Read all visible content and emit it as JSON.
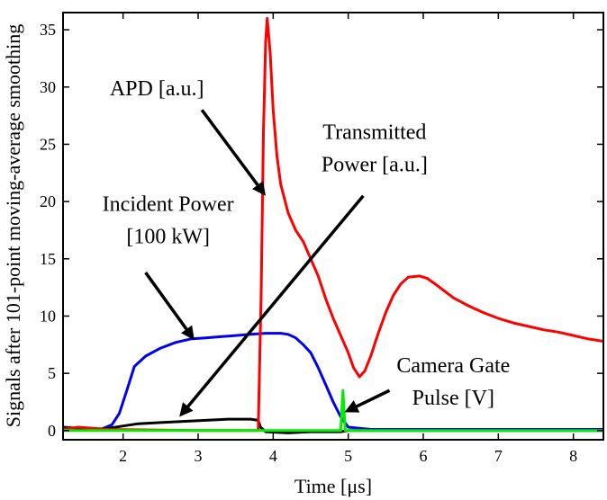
{
  "chart_data": {
    "type": "line",
    "xlabel": "Time [μs]",
    "ylabel": "Signals after 101-point moving-average smoothing",
    "xlim": [
      1.2,
      8.4
    ],
    "ylim": [
      -0.8,
      36.5
    ],
    "x_ticks": [
      "2",
      "3",
      "4",
      "5",
      "6",
      "7",
      "8"
    ],
    "y_ticks": [
      "0",
      "5",
      "10",
      "15",
      "20",
      "25",
      "30",
      "35"
    ],
    "grid": false,
    "series": [
      {
        "name": "APD [a.u.]",
        "color": "#ff0000",
        "points": [
          [
            1.2,
            0.1
          ],
          [
            1.4,
            0.3
          ],
          [
            1.6,
            0.2
          ],
          [
            1.8,
            0.1
          ],
          [
            2.5,
            0.05
          ],
          [
            3.0,
            0.0
          ],
          [
            3.5,
            0.0
          ],
          [
            3.8,
            0.0
          ],
          [
            3.84,
            12.0
          ],
          [
            3.87,
            26.0
          ],
          [
            3.9,
            34.0
          ],
          [
            3.92,
            36.0
          ],
          [
            3.96,
            33.0
          ],
          [
            4.0,
            28.0
          ],
          [
            4.05,
            24.0
          ],
          [
            4.1,
            21.5
          ],
          [
            4.2,
            19.0
          ],
          [
            4.3,
            17.5
          ],
          [
            4.4,
            16.5
          ],
          [
            4.5,
            15.0
          ],
          [
            4.6,
            13.5
          ],
          [
            4.7,
            11.5
          ],
          [
            4.8,
            9.8
          ],
          [
            4.9,
            8.3
          ],
          [
            5.0,
            6.8
          ],
          [
            5.07,
            5.5
          ],
          [
            5.15,
            4.7
          ],
          [
            5.22,
            5.2
          ],
          [
            5.3,
            6.5
          ],
          [
            5.4,
            8.5
          ],
          [
            5.5,
            10.3
          ],
          [
            5.6,
            11.8
          ],
          [
            5.7,
            12.8
          ],
          [
            5.8,
            13.4
          ],
          [
            5.95,
            13.5
          ],
          [
            6.05,
            13.3
          ],
          [
            6.2,
            12.6
          ],
          [
            6.4,
            11.6
          ],
          [
            6.6,
            10.9
          ],
          [
            6.8,
            10.3
          ],
          [
            7.0,
            9.8
          ],
          [
            7.2,
            9.4
          ],
          [
            7.4,
            9.1
          ],
          [
            7.6,
            8.8
          ],
          [
            7.8,
            8.6
          ],
          [
            8.0,
            8.3
          ],
          [
            8.2,
            8.0
          ],
          [
            8.4,
            7.8
          ]
        ]
      },
      {
        "name": "Incident Power [100 kW]",
        "color": "#0000ee",
        "points": [
          [
            1.2,
            0.2
          ],
          [
            1.7,
            0.1
          ],
          [
            1.85,
            0.5
          ],
          [
            1.95,
            1.5
          ],
          [
            2.05,
            3.5
          ],
          [
            2.15,
            5.6
          ],
          [
            2.3,
            6.5
          ],
          [
            2.5,
            7.2
          ],
          [
            2.7,
            7.7
          ],
          [
            2.9,
            8.0
          ],
          [
            3.1,
            8.1
          ],
          [
            3.3,
            8.2
          ],
          [
            3.5,
            8.3
          ],
          [
            3.7,
            8.4
          ],
          [
            3.9,
            8.5
          ],
          [
            4.1,
            8.5
          ],
          [
            4.2,
            8.4
          ],
          [
            4.3,
            8.1
          ],
          [
            4.4,
            7.5
          ],
          [
            4.5,
            6.8
          ],
          [
            4.6,
            5.5
          ],
          [
            4.7,
            4.0
          ],
          [
            4.8,
            2.5
          ],
          [
            4.9,
            1.2
          ],
          [
            5.0,
            0.3
          ],
          [
            5.3,
            0.1
          ],
          [
            8.4,
            0.1
          ]
        ]
      },
      {
        "name": "Transmitted Power [a.u.]",
        "color": "#000000",
        "points": [
          [
            1.2,
            0.3
          ],
          [
            1.4,
            0.2
          ],
          [
            1.6,
            0.1
          ],
          [
            1.8,
            0.2
          ],
          [
            2.0,
            0.4
          ],
          [
            2.2,
            0.6
          ],
          [
            2.5,
            0.7
          ],
          [
            2.8,
            0.8
          ],
          [
            3.1,
            0.9
          ],
          [
            3.4,
            1.0
          ],
          [
            3.7,
            1.0
          ],
          [
            3.8,
            0.9
          ],
          [
            3.83,
            0.3
          ],
          [
            3.9,
            -0.1
          ],
          [
            4.2,
            -0.2
          ],
          [
            4.5,
            -0.1
          ],
          [
            4.9,
            -0.1
          ],
          [
            5.0,
            0.0
          ],
          [
            5.5,
            0.0
          ],
          [
            8.4,
            0.0
          ]
        ]
      },
      {
        "name": "Camera Gate Pulse [V]",
        "color": "#00ee00",
        "points": [
          [
            1.2,
            0.0
          ],
          [
            2.0,
            0.0
          ],
          [
            3.0,
            0.0
          ],
          [
            4.0,
            0.0
          ],
          [
            4.9,
            0.0
          ],
          [
            4.93,
            3.5
          ],
          [
            4.96,
            0.0
          ],
          [
            6.0,
            0.0
          ],
          [
            7.0,
            0.0
          ],
          [
            8.4,
            0.0
          ]
        ]
      }
    ],
    "annotations": [
      {
        "lines": [
          "APD [a.u.]"
        ],
        "text_at": [
          2.45,
          29.9
        ],
        "arrow_from": [
          3.05,
          28.0
        ],
        "arrow_to": [
          3.9,
          20.5
        ]
      },
      {
        "lines": [
          "Transmitted",
          "Power [a.u.]"
        ],
        "text_at": [
          5.35,
          24.7
        ],
        "arrow_from": [
          5.2,
          20.5
        ],
        "arrow_to": [
          2.75,
          1.2
        ]
      },
      {
        "lines": [
          "Incident Power",
          "[100 kW]"
        ],
        "text_at": [
          2.6,
          18.4
        ],
        "arrow_from": [
          2.3,
          13.8
        ],
        "arrow_to": [
          2.95,
          7.9
        ]
      },
      {
        "lines": [
          "Camera Gate",
          "Pulse [V]"
        ],
        "text_at": [
          6.4,
          4.3
        ],
        "arrow_from": [
          5.55,
          3.5
        ],
        "arrow_to": [
          4.95,
          1.6
        ]
      }
    ]
  }
}
